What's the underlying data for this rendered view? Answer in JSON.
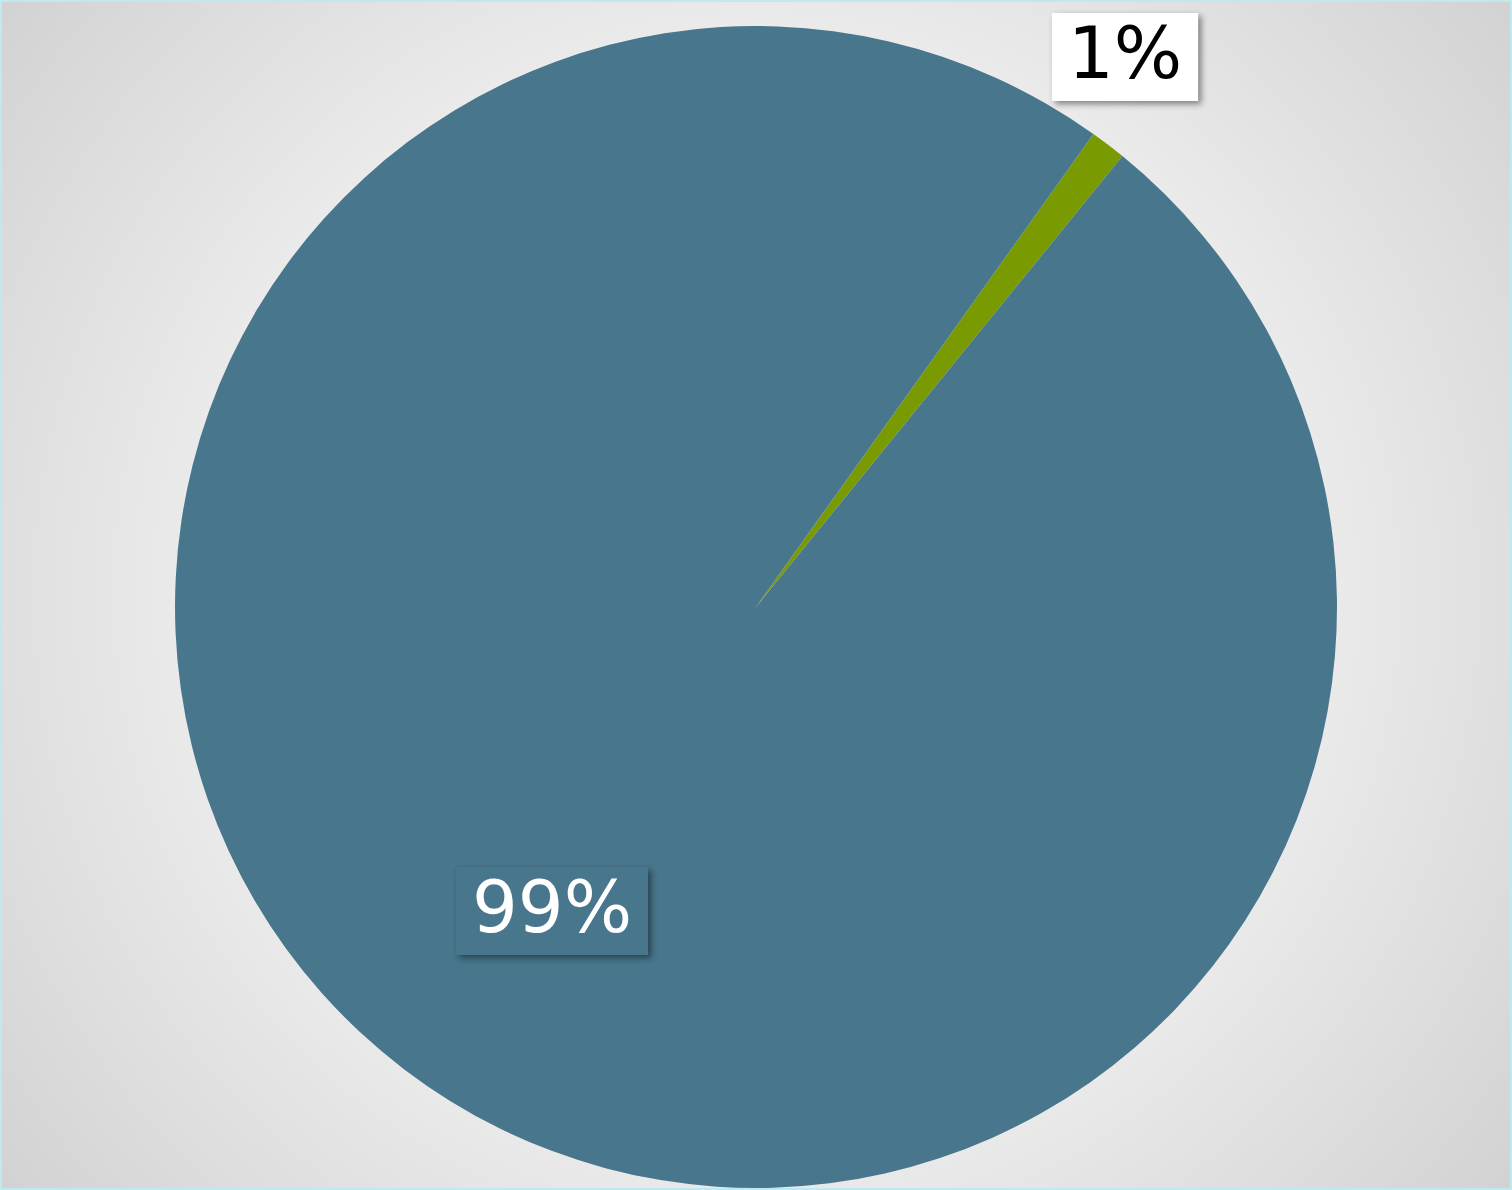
{
  "chart_data": {
    "type": "pie",
    "categories": [
      null,
      null
    ],
    "values": [
      1,
      99
    ],
    "colors": [
      "#7a9a01",
      "#48768c"
    ],
    "value_labels": [
      "1%",
      "99%"
    ],
    "legend": false
  }
}
